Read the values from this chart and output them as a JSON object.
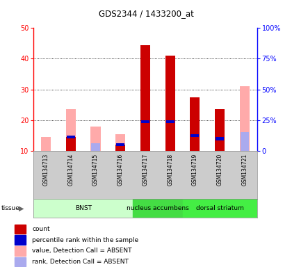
{
  "title": "GDS2344 / 1433200_at",
  "samples": [
    "GSM134713",
    "GSM134714",
    "GSM134715",
    "GSM134716",
    "GSM134717",
    "GSM134718",
    "GSM134719",
    "GSM134720",
    "GSM134721"
  ],
  "count_values": [
    0,
    14.5,
    0,
    12.0,
    44.5,
    41.0,
    27.5,
    23.5,
    0
  ],
  "rank_values": [
    0,
    14.5,
    0,
    12.0,
    19.5,
    19.5,
    15.0,
    14.0,
    0
  ],
  "absent_value": [
    14.5,
    23.5,
    18.0,
    15.5,
    0,
    0,
    0,
    0,
    31.0
  ],
  "absent_rank": [
    0,
    0,
    12.5,
    0,
    0,
    0,
    0,
    0,
    16.0
  ],
  "tissues": [
    {
      "label": "BNST",
      "start": 0,
      "end": 4,
      "color": "#ccffcc"
    },
    {
      "label": "nucleus accumbens",
      "start": 4,
      "end": 6,
      "color": "#44dd44"
    },
    {
      "label": "dorsal striatum",
      "start": 6,
      "end": 9,
      "color": "#44ee44"
    }
  ],
  "ylim_left": [
    10,
    50
  ],
  "ylim_right": [
    0,
    100
  ],
  "yticks_left": [
    10,
    20,
    30,
    40,
    50
  ],
  "yticks_right": [
    0,
    25,
    50,
    75,
    100
  ],
  "color_count": "#cc0000",
  "color_rank_blue": "#0000cc",
  "color_absent_val": "#ffaaaa",
  "color_absent_rank": "#aaaaee",
  "bar_width": 0.4,
  "bg_white": "#ffffff",
  "bg_sample": "#cccccc",
  "legend_items": [
    {
      "color": "#cc0000",
      "label": "count"
    },
    {
      "color": "#0000cc",
      "label": "percentile rank within the sample"
    },
    {
      "color": "#ffaaaa",
      "label": "value, Detection Call = ABSENT"
    },
    {
      "color": "#aaaaee",
      "label": "rank, Detection Call = ABSENT"
    }
  ]
}
